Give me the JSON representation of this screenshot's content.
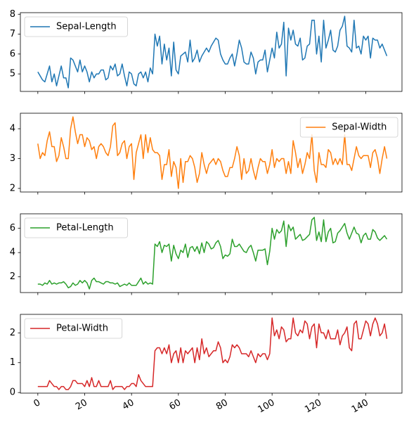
{
  "chart_data": [
    {
      "type": "line",
      "series": [
        {
          "name": "Sepal-Length",
          "color": "#1f77b4",
          "values": [
            5.1,
            4.9,
            4.7,
            4.6,
            5.0,
            5.4,
            4.6,
            5.0,
            4.4,
            4.9,
            5.4,
            4.8,
            4.8,
            4.3,
            5.8,
            5.7,
            5.4,
            5.1,
            5.7,
            5.1,
            5.4,
            5.1,
            4.6,
            5.1,
            4.8,
            5.0,
            5.0,
            5.2,
            5.2,
            4.7,
            4.8,
            5.4,
            5.2,
            5.5,
            4.9,
            5.0,
            5.5,
            4.9,
            4.4,
            5.1,
            5.0,
            4.5,
            4.4,
            5.0,
            5.1,
            4.8,
            5.1,
            4.6,
            5.3,
            5.0,
            7.0,
            6.4,
            6.9,
            5.5,
            6.5,
            5.7,
            6.3,
            4.9,
            6.6,
            5.2,
            5.0,
            5.9,
            6.0,
            6.1,
            5.6,
            6.7,
            5.6,
            5.8,
            6.2,
            5.6,
            5.9,
            6.1,
            6.3,
            6.1,
            6.4,
            6.6,
            6.8,
            6.7,
            6.0,
            5.7,
            5.5,
            5.5,
            5.8,
            6.0,
            5.4,
            6.0,
            6.7,
            6.3,
            5.6,
            5.5,
            5.5,
            6.1,
            5.8,
            5.0,
            5.6,
            5.7,
            5.7,
            6.2,
            5.1,
            5.7,
            6.3,
            5.8,
            7.1,
            6.3,
            6.5,
            7.6,
            4.9,
            7.3,
            6.7,
            7.2,
            6.5,
            6.4,
            6.8,
            5.7,
            5.8,
            6.4,
            6.5,
            7.7,
            7.7,
            6.0,
            6.9,
            5.6,
            7.7,
            6.3,
            6.7,
            7.2,
            6.2,
            6.1,
            6.4,
            7.2,
            7.4,
            7.9,
            6.4,
            6.3,
            6.1,
            7.7,
            6.3,
            6.4,
            6.0,
            6.9,
            6.7,
            6.9,
            5.8,
            6.8,
            6.7,
            6.7,
            6.3,
            6.5,
            6.2,
            5.9
          ]
        }
      ],
      "y_ticks": [
        5,
        6,
        7,
        8
      ],
      "ylim": [
        4.12,
        8.08
      ],
      "legend_location": "upper left"
    },
    {
      "type": "line",
      "series": [
        {
          "name": "Sepal-Width",
          "color": "#ff7f0e",
          "values": [
            3.5,
            3.0,
            3.2,
            3.1,
            3.6,
            3.9,
            3.4,
            3.4,
            2.9,
            3.1,
            3.7,
            3.4,
            3.0,
            3.0,
            4.0,
            4.4,
            3.9,
            3.5,
            3.8,
            3.8,
            3.4,
            3.7,
            3.6,
            3.3,
            3.4,
            3.0,
            3.4,
            3.5,
            3.4,
            3.2,
            3.1,
            3.4,
            4.1,
            4.2,
            3.1,
            3.2,
            3.5,
            3.6,
            3.0,
            3.4,
            3.5,
            2.3,
            3.2,
            3.5,
            3.8,
            3.0,
            3.8,
            3.2,
            3.7,
            3.3,
            3.2,
            3.2,
            3.1,
            2.3,
            2.8,
            2.8,
            3.3,
            2.4,
            2.9,
            2.7,
            2.0,
            3.0,
            2.2,
            2.9,
            2.9,
            3.1,
            3.0,
            2.7,
            2.2,
            2.5,
            3.2,
            2.8,
            2.5,
            2.8,
            2.9,
            3.0,
            2.8,
            3.0,
            2.9,
            2.6,
            2.4,
            2.4,
            2.7,
            2.7,
            3.0,
            3.4,
            3.1,
            2.3,
            3.0,
            2.5,
            2.6,
            3.0,
            2.6,
            2.3,
            2.7,
            3.0,
            2.9,
            2.9,
            2.5,
            2.8,
            3.3,
            2.7,
            3.0,
            2.9,
            3.0,
            3.0,
            2.5,
            2.9,
            2.5,
            3.6,
            3.2,
            2.7,
            3.0,
            2.5,
            2.8,
            3.2,
            3.0,
            3.8,
            2.6,
            2.2,
            3.2,
            2.8,
            2.8,
            2.7,
            3.3,
            3.2,
            2.8,
            3.0,
            2.8,
            3.0,
            2.8,
            3.8,
            2.8,
            2.8,
            2.6,
            3.0,
            3.4,
            3.1,
            3.0,
            3.1,
            3.1,
            3.1,
            2.7,
            3.2,
            3.3,
            3.0,
            2.5,
            3.0,
            3.4,
            3.0
          ]
        }
      ],
      "y_ticks": [
        2,
        3,
        4
      ],
      "ylim": [
        1.88,
        4.52
      ],
      "legend_location": "upper right"
    },
    {
      "type": "line",
      "series": [
        {
          "name": "Petal-Length",
          "color": "#2ca02c",
          "values": [
            1.4,
            1.4,
            1.3,
            1.5,
            1.4,
            1.7,
            1.4,
            1.5,
            1.4,
            1.5,
            1.5,
            1.6,
            1.4,
            1.1,
            1.2,
            1.5,
            1.3,
            1.4,
            1.7,
            1.5,
            1.7,
            1.5,
            1.0,
            1.7,
            1.9,
            1.6,
            1.6,
            1.5,
            1.4,
            1.6,
            1.6,
            1.5,
            1.5,
            1.4,
            1.5,
            1.2,
            1.3,
            1.4,
            1.3,
            1.5,
            1.3,
            1.3,
            1.3,
            1.6,
            1.9,
            1.4,
            1.6,
            1.4,
            1.5,
            1.4,
            4.7,
            4.5,
            4.9,
            4.0,
            4.6,
            4.5,
            4.7,
            3.3,
            4.6,
            3.9,
            3.5,
            4.2,
            4.0,
            4.7,
            3.6,
            4.4,
            4.5,
            4.1,
            4.5,
            3.9,
            4.8,
            4.0,
            4.9,
            4.7,
            4.3,
            4.4,
            4.8,
            5.0,
            4.5,
            3.5,
            3.8,
            3.7,
            3.9,
            5.1,
            4.5,
            4.5,
            4.7,
            4.4,
            4.1,
            4.0,
            4.4,
            4.6,
            4.0,
            3.3,
            4.2,
            4.2,
            4.2,
            4.3,
            3.0,
            4.1,
            6.0,
            5.1,
            5.9,
            5.6,
            5.8,
            6.6,
            4.5,
            6.3,
            5.8,
            6.1,
            5.1,
            5.3,
            5.5,
            5.0,
            5.1,
            5.3,
            5.5,
            6.7,
            6.9,
            5.0,
            5.7,
            4.9,
            6.7,
            4.9,
            5.7,
            6.0,
            4.8,
            4.9,
            5.6,
            5.8,
            6.1,
            6.4,
            5.6,
            5.1,
            5.6,
            6.1,
            5.6,
            5.5,
            4.8,
            5.4,
            5.6,
            5.1,
            5.1,
            5.9,
            5.7,
            5.2,
            5.0,
            5.2,
            5.4,
            5.1
          ]
        }
      ],
      "y_ticks": [
        2,
        4,
        6
      ],
      "ylim": [
        0.705,
        7.195
      ],
      "legend_location": "upper left"
    },
    {
      "type": "line",
      "series": [
        {
          "name": "Petal-Width",
          "color": "#d62728",
          "values": [
            0.2,
            0.2,
            0.2,
            0.2,
            0.2,
            0.4,
            0.3,
            0.2,
            0.2,
            0.1,
            0.2,
            0.2,
            0.1,
            0.1,
            0.2,
            0.4,
            0.4,
            0.3,
            0.3,
            0.3,
            0.2,
            0.4,
            0.2,
            0.5,
            0.2,
            0.2,
            0.4,
            0.2,
            0.2,
            0.2,
            0.2,
            0.4,
            0.1,
            0.2,
            0.2,
            0.2,
            0.2,
            0.1,
            0.2,
            0.2,
            0.3,
            0.3,
            0.2,
            0.6,
            0.4,
            0.3,
            0.2,
            0.2,
            0.2,
            0.2,
            1.4,
            1.5,
            1.5,
            1.3,
            1.5,
            1.3,
            1.6,
            1.0,
            1.3,
            1.4,
            1.0,
            1.5,
            1.0,
            1.4,
            1.3,
            1.4,
            1.5,
            1.0,
            1.5,
            1.1,
            1.8,
            1.3,
            1.5,
            1.2,
            1.3,
            1.4,
            1.4,
            1.7,
            1.5,
            1.0,
            1.1,
            1.0,
            1.2,
            1.6,
            1.5,
            1.6,
            1.5,
            1.3,
            1.3,
            1.3,
            1.2,
            1.4,
            1.2,
            1.0,
            1.3,
            1.2,
            1.3,
            1.3,
            1.1,
            1.3,
            2.5,
            1.9,
            2.1,
            1.8,
            2.2,
            2.1,
            1.7,
            1.8,
            1.8,
            2.5,
            2.0,
            1.9,
            2.1,
            2.0,
            2.4,
            2.3,
            1.8,
            2.2,
            2.3,
            1.5,
            2.3,
            2.0,
            2.0,
            1.8,
            2.1,
            1.8,
            1.8,
            1.8,
            2.1,
            1.6,
            1.9,
            2.0,
            2.2,
            1.5,
            1.4,
            2.3,
            2.4,
            1.8,
            1.8,
            2.1,
            2.4,
            2.3,
            1.9,
            2.3,
            2.5,
            2.3,
            1.9,
            2.0,
            2.3,
            1.8
          ]
        }
      ],
      "y_ticks": [
        0,
        1,
        2
      ],
      "ylim": [
        -0.02,
        2.62
      ],
      "legend_location": "upper left"
    }
  ],
  "x_axis": {
    "xlim": [
      -7.45,
      155.45
    ],
    "tick_values": [
      0,
      20,
      40,
      60,
      80,
      100,
      120,
      140
    ],
    "tick_labels": [
      "0",
      "20",
      "40",
      "60",
      "80",
      "100",
      "120",
      "140"
    ]
  },
  "colors": {
    "axes_edge": "#000000",
    "background": "#ffffff"
  }
}
